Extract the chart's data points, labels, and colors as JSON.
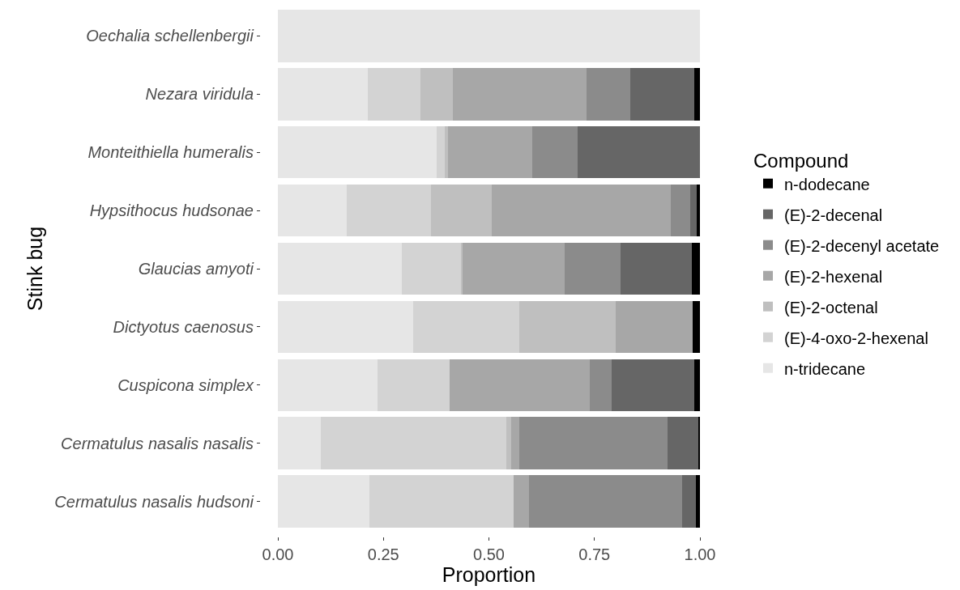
{
  "chart_data": {
    "type": "bar",
    "orientation": "horizontal",
    "stacked": true,
    "xlabel": "Proportion",
    "ylabel": "Stink bug",
    "legend_title": "Compound",
    "legend": "right",
    "grid": false,
    "categories": [
      "Oechalia schellenbergii",
      "Nezara viridula",
      "Monteithiella humeralis",
      "Hypsithocus hudsonae",
      "Glaucias amyoti",
      "Dictyotus caenosus",
      "Cuspicona simplex",
      "Cermatulus nasalis nasalis",
      "Cermatulus nasalis hudsoni"
    ],
    "xlim": [
      0,
      1
    ],
    "xticks": [
      {
        "value": 0,
        "label": "0.00"
      },
      {
        "value": 0.25,
        "label": "0.25"
      },
      {
        "value": 0.5,
        "label": "0.50"
      },
      {
        "value": 0.75,
        "label": "0.75"
      },
      {
        "value": 1,
        "label": "1.00"
      }
    ],
    "series": [
      {
        "name": "n-tridecane",
        "color": "#e6e6e6",
        "values": [
          1.0,
          0.214,
          0.377,
          0.164,
          0.294,
          0.32,
          0.237,
          0.101,
          0.217
        ]
      },
      {
        "name": "(E)-4-oxo-2-hexenal",
        "color": "#d3d3d3",
        "values": [
          null,
          0.124,
          0.019,
          0.199,
          0.14,
          0.252,
          0.169,
          0.441,
          0.342
        ]
      },
      {
        "name": "(E)-2-octenal",
        "color": "#bfbfbf",
        "values": [
          null,
          0.076,
          0.007,
          0.143,
          0.003,
          0.228,
          null,
          0.01,
          null
        ]
      },
      {
        "name": "(E)-2-hexenal",
        "color": "#a7a7a7",
        "values": [
          null,
          0.318,
          0.199,
          0.424,
          0.242,
          0.183,
          0.332,
          0.02,
          0.036
        ]
      },
      {
        "name": "(E)-2-decenyl acetate",
        "color": "#8b8b8b",
        "values": [
          null,
          0.103,
          0.109,
          0.046,
          0.133,
          null,
          0.053,
          0.352,
          0.362
        ]
      },
      {
        "name": "(E)-2-decenal",
        "color": "#666666",
        "values": [
          null,
          0.152,
          0.289,
          0.017,
          0.168,
          null,
          0.196,
          0.073,
          0.033
        ]
      },
      {
        "name": "n-dodecane",
        "color": "#000000",
        "values": [
          null,
          0.013,
          null,
          0.007,
          0.02,
          0.017,
          0.013,
          0.003,
          0.01
        ]
      }
    ]
  }
}
